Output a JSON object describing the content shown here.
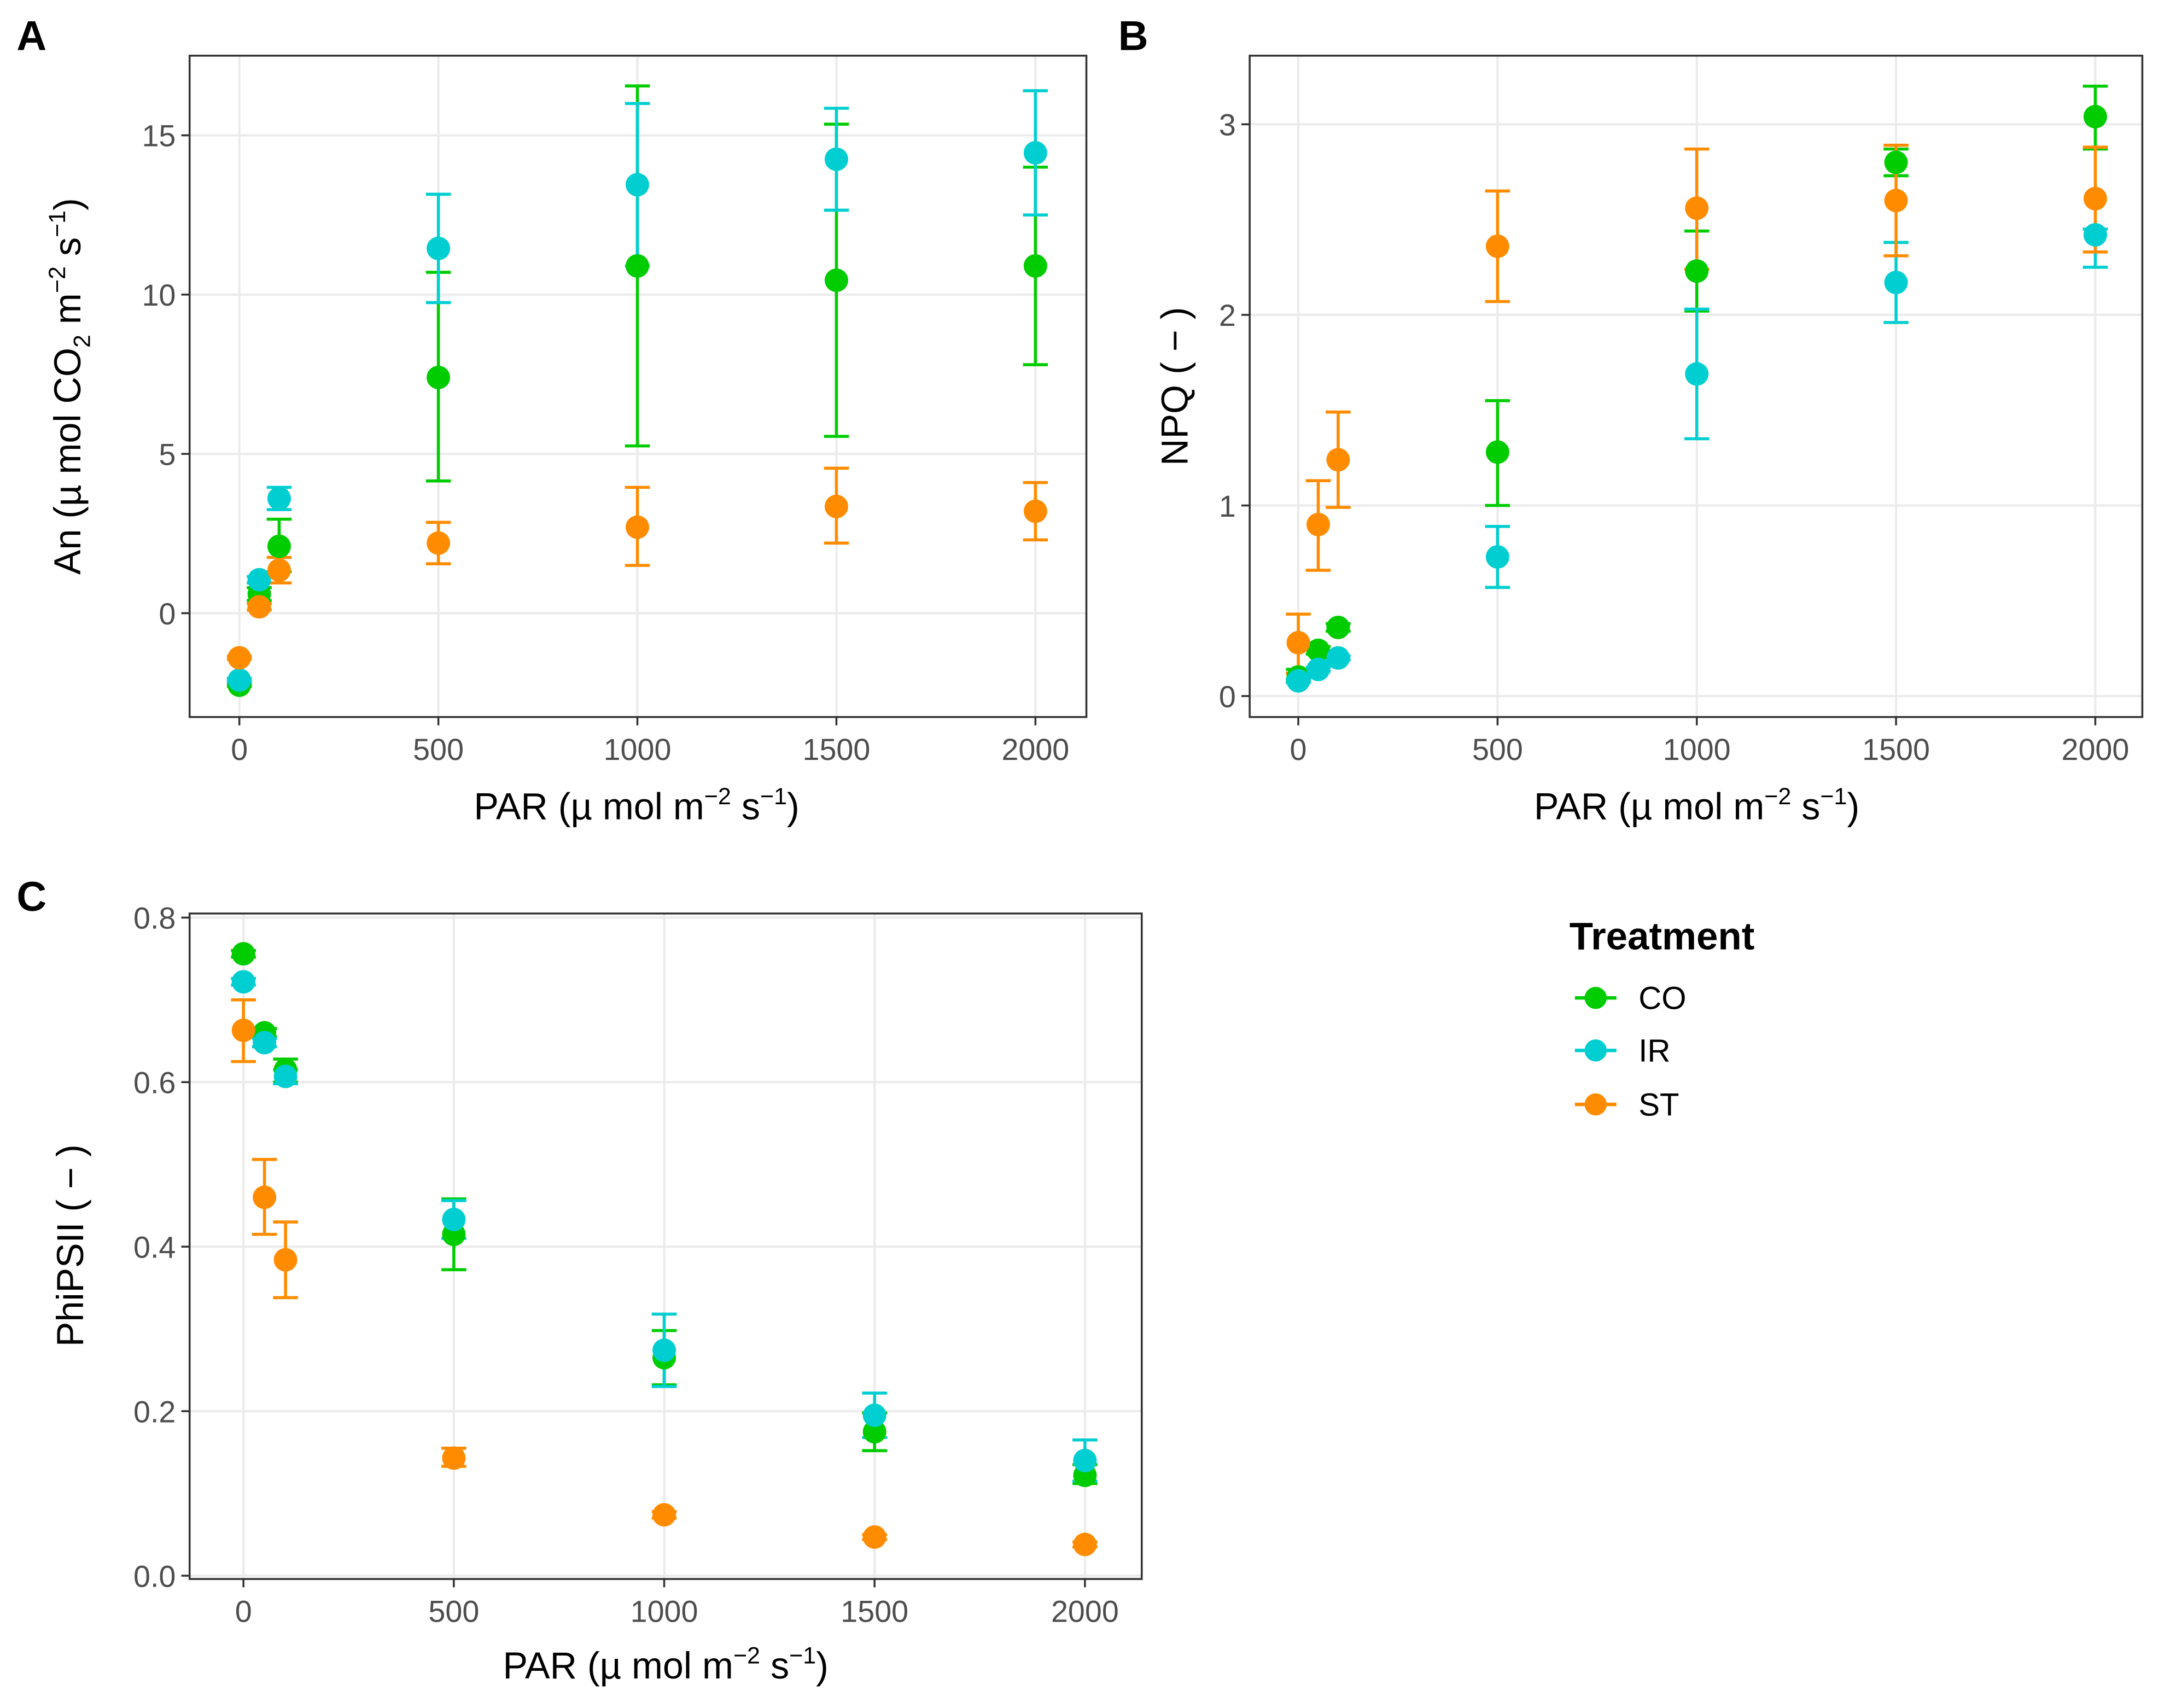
{
  "chart_data": [
    {
      "type": "scatter",
      "panel": "A",
      "x": [
        0,
        50,
        100,
        500,
        1000,
        1500,
        2000
      ],
      "xlabel_parts": [
        "PAR (µ mol m",
        "−2",
        " s",
        "−1",
        ")"
      ],
      "ylabel_parts": [
        "An (µ mol CO",
        "2",
        " m",
        "−2",
        " s",
        "−1",
        ")"
      ],
      "xticks": [
        0,
        500,
        1000,
        1500,
        2000
      ],
      "yticks": [
        0,
        5,
        10,
        15
      ],
      "xlim": [
        -125,
        2128
      ],
      "ylim": [
        -3.26,
        17.5
      ],
      "grid": true,
      "series": [
        {
          "name": "CO",
          "values": [
            -2.26,
            0.6,
            2.1,
            7.4,
            10.9,
            10.45,
            10.9
          ],
          "lower": [
            -2.3,
            0.4,
            1.3,
            4.15,
            5.25,
            5.55,
            7.8
          ],
          "upper": [
            -2.2,
            0.8,
            2.95,
            10.7,
            16.55,
            15.35,
            14.0
          ]
        },
        {
          "name": "IR",
          "values": [
            -2.1,
            1.05,
            3.6,
            11.45,
            13.45,
            14.25,
            14.45
          ],
          "lower": [
            -2.15,
            0.95,
            3.25,
            9.75,
            10.9,
            12.65,
            12.5
          ],
          "upper": [
            -2.05,
            1.15,
            3.95,
            13.15,
            16.0,
            15.85,
            16.4
          ]
        },
        {
          "name": "ST",
          "values": [
            -1.4,
            0.2,
            1.35,
            2.2,
            2.7,
            3.35,
            3.2
          ],
          "lower": [
            -1.45,
            0.1,
            0.95,
            1.55,
            1.5,
            2.2,
            2.3
          ],
          "upper": [
            -1.35,
            0.3,
            1.75,
            2.85,
            3.95,
            4.55,
            4.1
          ]
        }
      ]
    },
    {
      "type": "scatter",
      "panel": "B",
      "x": [
        0,
        50,
        100,
        500,
        1000,
        1500,
        2000
      ],
      "xlabel_parts": [
        "PAR (µ mol m",
        "−2",
        " s",
        "−1",
        ")"
      ],
      "ylabel_parts": [
        "NPQ ( − )"
      ],
      "xticks": [
        0,
        500,
        1000,
        1500,
        2000
      ],
      "yticks": [
        0,
        1,
        2,
        3
      ],
      "xlim": [
        -122,
        2118
      ],
      "ylim": [
        -0.11,
        3.36
      ],
      "grid": true,
      "series": [
        {
          "name": "CO",
          "values": [
            0.1,
            0.24,
            0.36,
            1.28,
            2.23,
            2.8,
            3.04
          ],
          "lower": [
            0.08,
            0.22,
            0.34,
            1.0,
            2.02,
            2.73,
            2.87
          ],
          "upper": [
            0.14,
            0.26,
            0.38,
            1.55,
            2.44,
            2.87,
            3.2
          ]
        },
        {
          "name": "IR",
          "values": [
            0.08,
            0.14,
            0.2,
            0.73,
            1.69,
            2.17,
            2.42
          ],
          "lower": [
            0.07,
            0.13,
            0.19,
            0.57,
            1.35,
            1.96,
            2.25
          ],
          "upper": [
            0.09,
            0.15,
            0.21,
            0.89,
            2.03,
            2.38,
            2.45
          ]
        },
        {
          "name": "ST",
          "values": [
            0.28,
            0.9,
            1.24,
            2.36,
            2.56,
            2.6,
            2.61
          ],
          "lower": [
            0.12,
            0.66,
            0.99,
            2.07,
            2.24,
            2.31,
            2.33
          ],
          "upper": [
            0.43,
            1.13,
            1.49,
            2.65,
            2.87,
            2.89,
            2.88
          ]
        }
      ]
    },
    {
      "type": "scatter",
      "panel": "C",
      "x": [
        0,
        50,
        100,
        500,
        1000,
        1500,
        2000
      ],
      "xlabel_parts": [
        "PAR (µ mol m",
        "−2",
        " s",
        "−1",
        ")"
      ],
      "ylabel_parts": [
        "PhiPSII ( − )"
      ],
      "xticks": [
        0,
        500,
        1000,
        1500,
        2000
      ],
      "yticks": [
        0.0,
        0.2,
        0.4,
        0.6,
        0.8
      ],
      "ytick_labels": [
        "0.0",
        "0.2",
        "0.4",
        "0.6",
        "0.8"
      ],
      "xlim": [
        -128,
        2135
      ],
      "ylim": [
        -0.004,
        0.805
      ],
      "grid": true,
      "series": [
        {
          "name": "CO",
          "values": [
            0.756,
            0.66,
            0.615,
            0.415,
            0.265,
            0.175,
            0.122
          ],
          "lower": [
            0.752,
            0.655,
            0.6,
            0.372,
            0.232,
            0.152,
            0.112
          ],
          "upper": [
            0.76,
            0.665,
            0.628,
            0.458,
            0.298,
            0.198,
            0.135
          ]
        },
        {
          "name": "IR",
          "values": [
            0.722,
            0.648,
            0.607,
            0.433,
            0.274,
            0.195,
            0.14
          ],
          "lower": [
            0.718,
            0.643,
            0.598,
            0.41,
            0.23,
            0.168,
            0.115
          ],
          "upper": [
            0.726,
            0.653,
            0.615,
            0.456,
            0.318,
            0.222,
            0.165
          ]
        },
        {
          "name": "ST",
          "values": [
            0.663,
            0.46,
            0.384,
            0.143,
            0.074,
            0.047,
            0.038
          ],
          "lower": [
            0.625,
            0.415,
            0.338,
            0.133,
            0.07,
            0.044,
            0.035
          ],
          "upper": [
            0.7,
            0.506,
            0.43,
            0.155,
            0.078,
            0.05,
            0.041
          ]
        }
      ]
    }
  ],
  "panel_labels": [
    "A",
    "B",
    "C"
  ],
  "legend": {
    "title": "Treatment",
    "items": [
      {
        "label": "CO",
        "color": "#00CC00"
      },
      {
        "label": "IR",
        "color": "#00CED1"
      },
      {
        "label": "ST",
        "color": "#FF8C00"
      }
    ]
  }
}
